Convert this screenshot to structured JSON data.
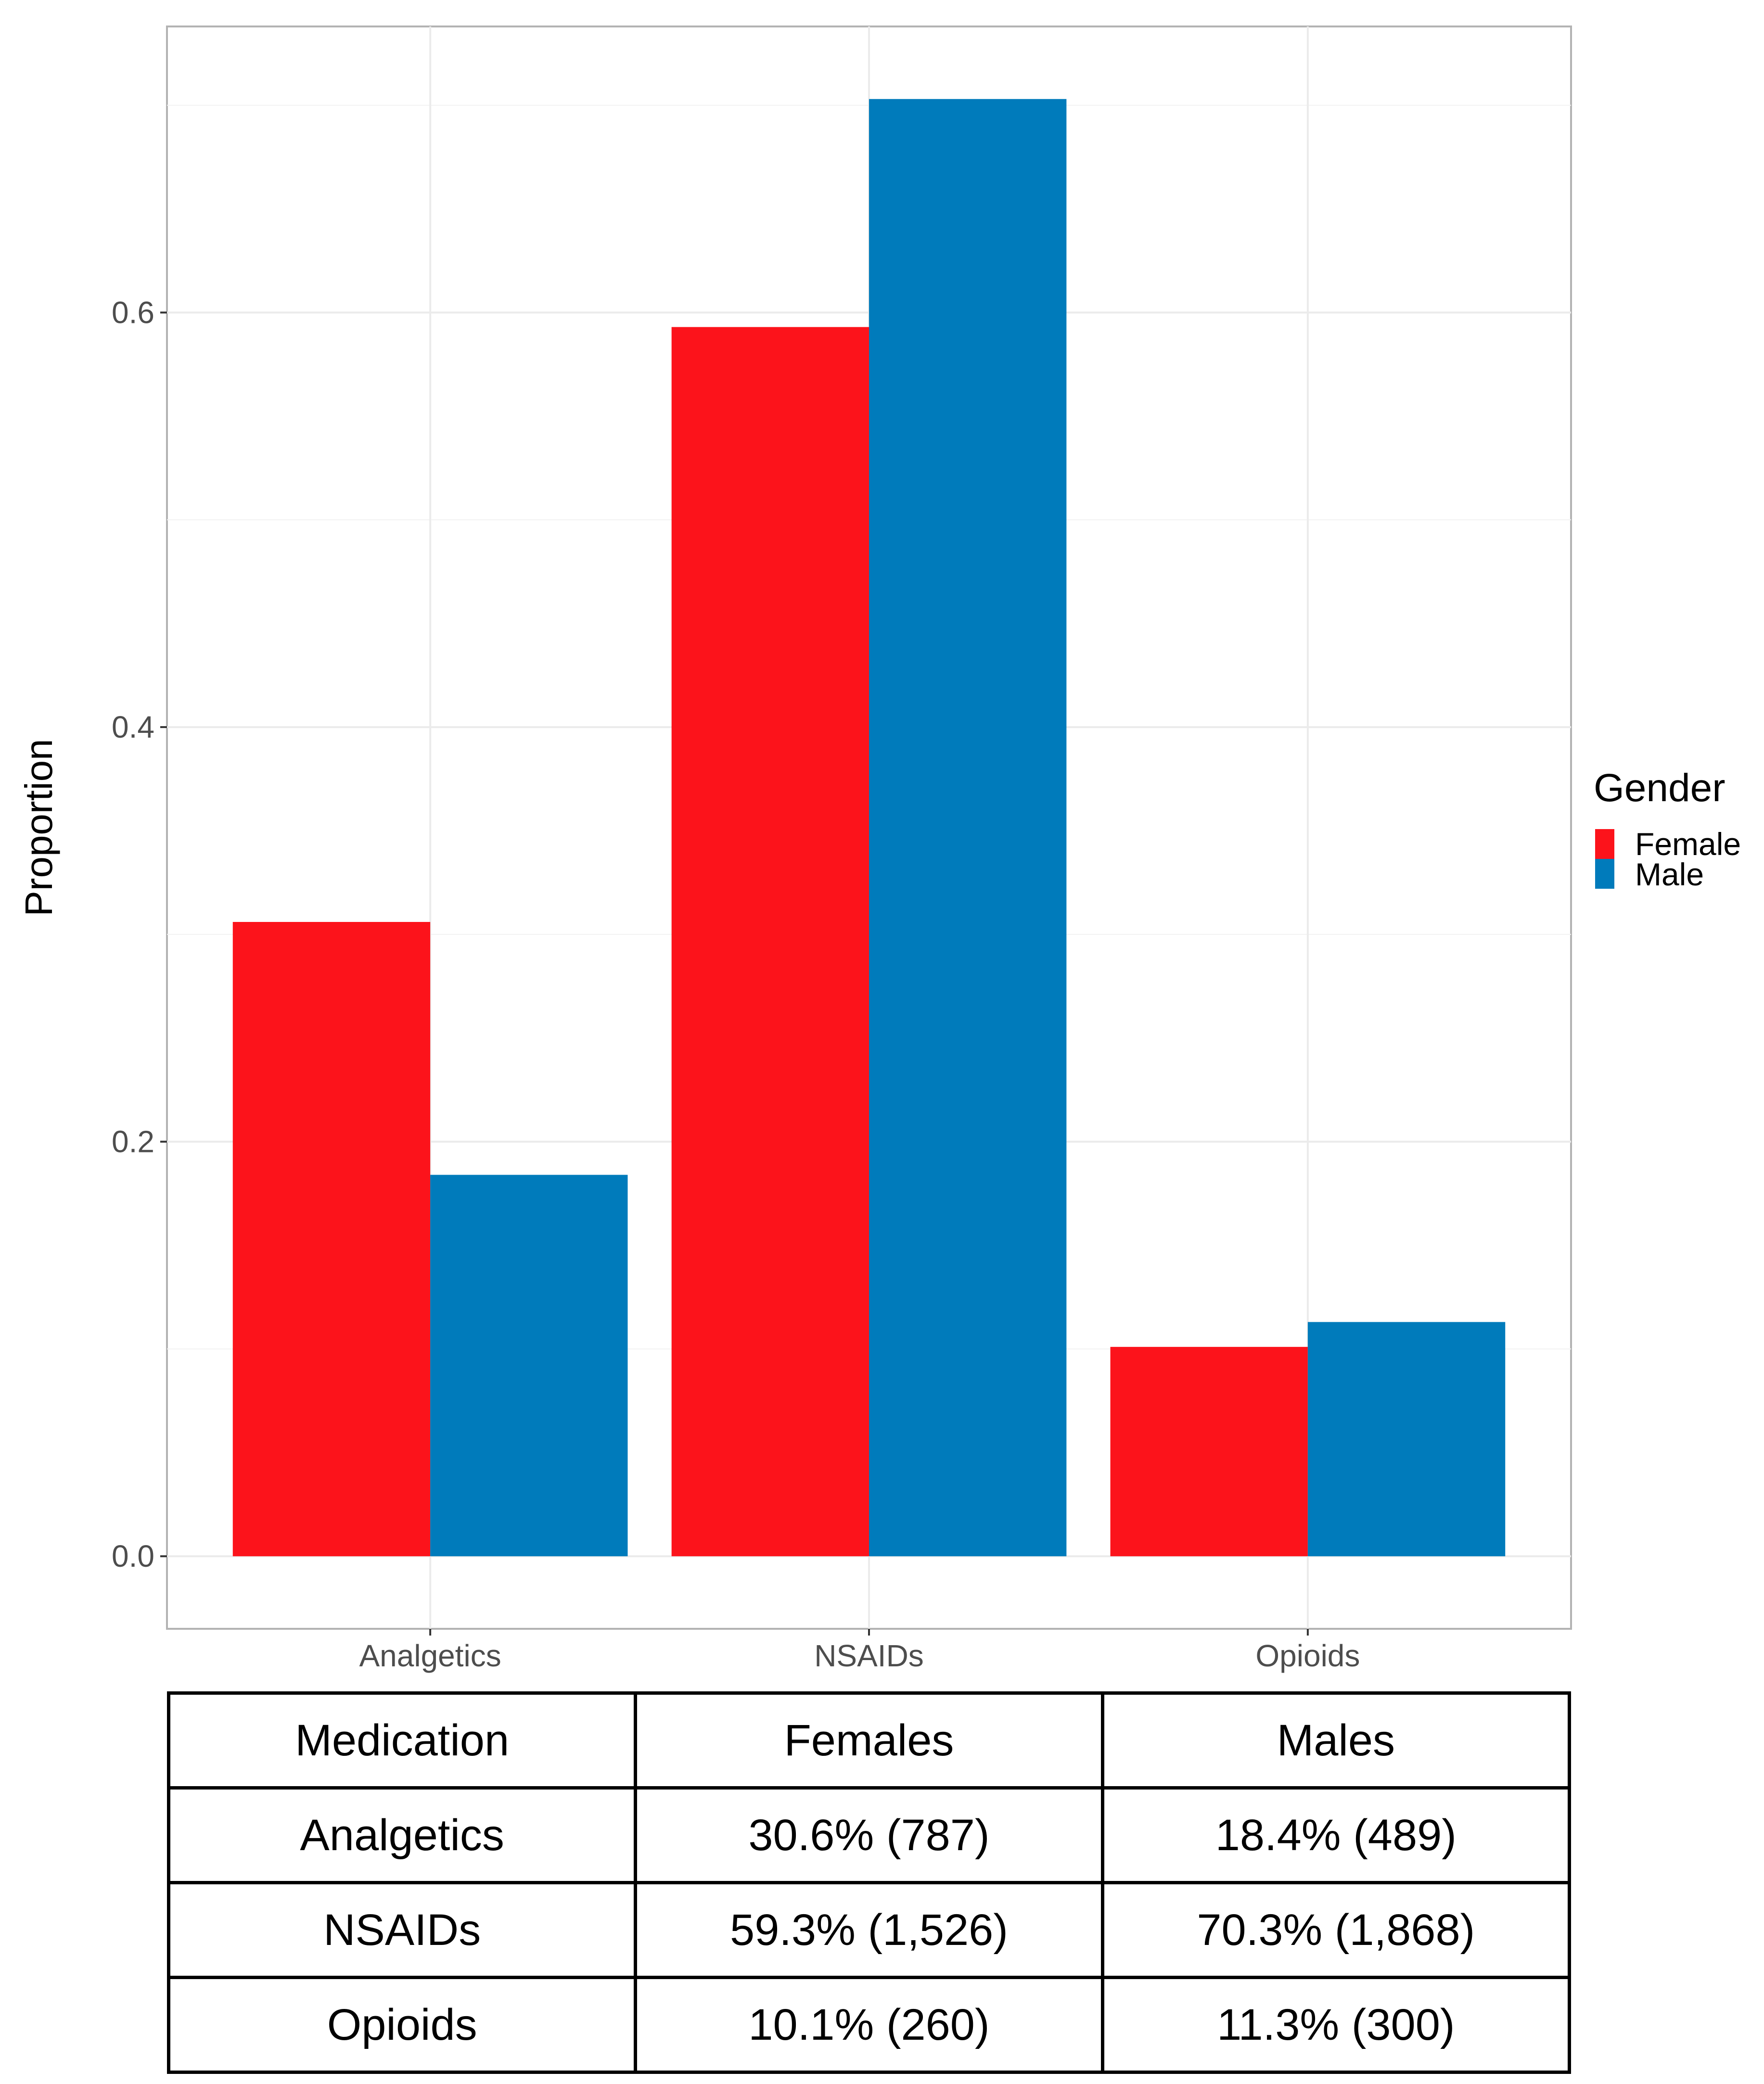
{
  "chart_data": {
    "type": "bar",
    "title": "",
    "xlabel": "",
    "ylabel": "Proportion",
    "categories": [
      "Analgetics",
      "NSAIDs",
      "Opioids"
    ],
    "series": [
      {
        "name": "Female",
        "color": "#fc131b",
        "values": [
          0.306,
          0.593,
          0.101
        ]
      },
      {
        "name": "Male",
        "color": "#007bbb",
        "values": [
          0.184,
          0.703,
          0.113
        ]
      }
    ],
    "ylim": [
      -0.035,
      0.738
    ],
    "yticks": [
      0.0,
      0.2,
      0.4,
      0.6
    ],
    "ytick_labels": [
      "0.0",
      "0.2",
      "0.4",
      "0.6"
    ],
    "grid": true,
    "legend": {
      "title": "Gender",
      "position": "right",
      "entries": [
        "Female",
        "Male"
      ]
    }
  },
  "table": {
    "headers": [
      "Medication",
      "Females",
      "Males"
    ],
    "rows": [
      [
        "Analgetics",
        "30.6% (787)",
        "18.4% (489)"
      ],
      [
        "NSAIDs",
        "59.3% (1,526)",
        "70.3% (1,868)"
      ],
      [
        "Opioids",
        "10.1% (260)",
        "11.3% (300)"
      ]
    ]
  }
}
